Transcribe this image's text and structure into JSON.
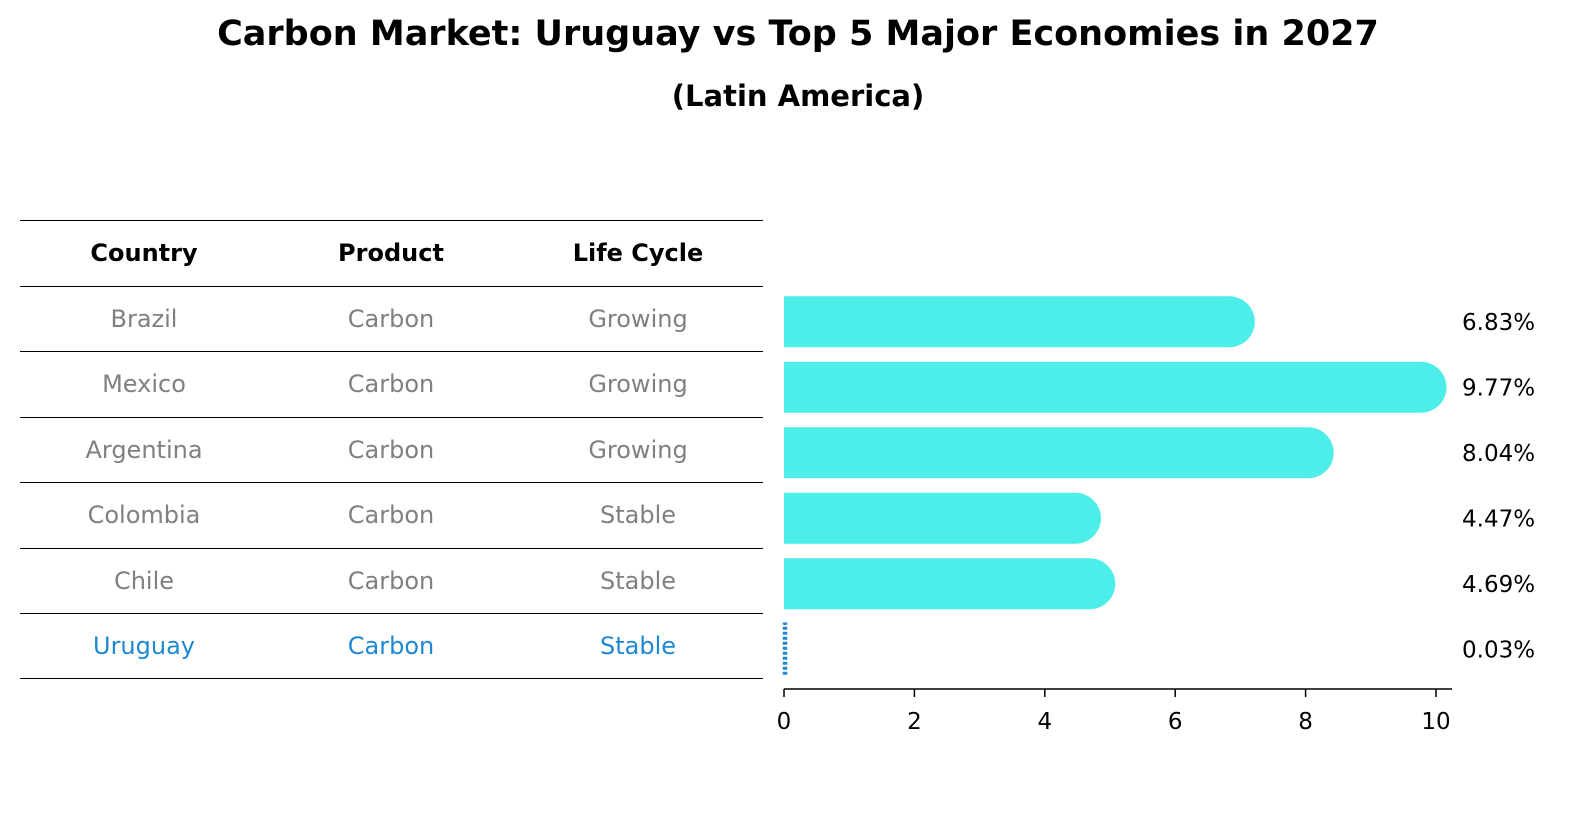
{
  "title": "Carbon Market: Uruguay vs Top 5 Major Economies in 2027",
  "subtitle": "(Latin America)",
  "colors": {
    "bar": "#4dedea",
    "highlight": "#1e88d0",
    "muted": "#808080"
  },
  "table": {
    "headers": [
      "Country",
      "Product",
      "Life Cycle"
    ],
    "rows": [
      [
        "Brazil",
        "Carbon",
        "Growing"
      ],
      [
        "Mexico",
        "Carbon",
        "Growing"
      ],
      [
        "Argentina",
        "Carbon",
        "Growing"
      ],
      [
        "Colombia",
        "Carbon",
        "Stable"
      ],
      [
        "Chile",
        "Carbon",
        "Stable"
      ],
      [
        "Uruguay",
        "Carbon",
        "Stable"
      ]
    ]
  },
  "chart_data": {
    "type": "bar",
    "orientation": "horizontal",
    "categories": [
      "Brazil",
      "Mexico",
      "Argentina",
      "Colombia",
      "Chile",
      "Uruguay"
    ],
    "values": [
      6.83,
      9.77,
      8.04,
      4.47,
      4.69,
      0.03
    ],
    "value_labels": [
      "6.83%",
      "9.77%",
      "8.04%",
      "4.47%",
      "4.69%",
      "0.03%"
    ],
    "highlight": "Uruguay",
    "xlim": [
      0,
      10
    ],
    "xticks": [
      0,
      2,
      4,
      6,
      8,
      10
    ],
    "xtick_labels": [
      "0",
      "2",
      "4",
      "6",
      "8",
      "10"
    ],
    "title": "Carbon Market: Uruguay vs Top 5 Major Economies in 2027",
    "subtitle": "(Latin America)",
    "xlabel": "",
    "ylabel": ""
  }
}
